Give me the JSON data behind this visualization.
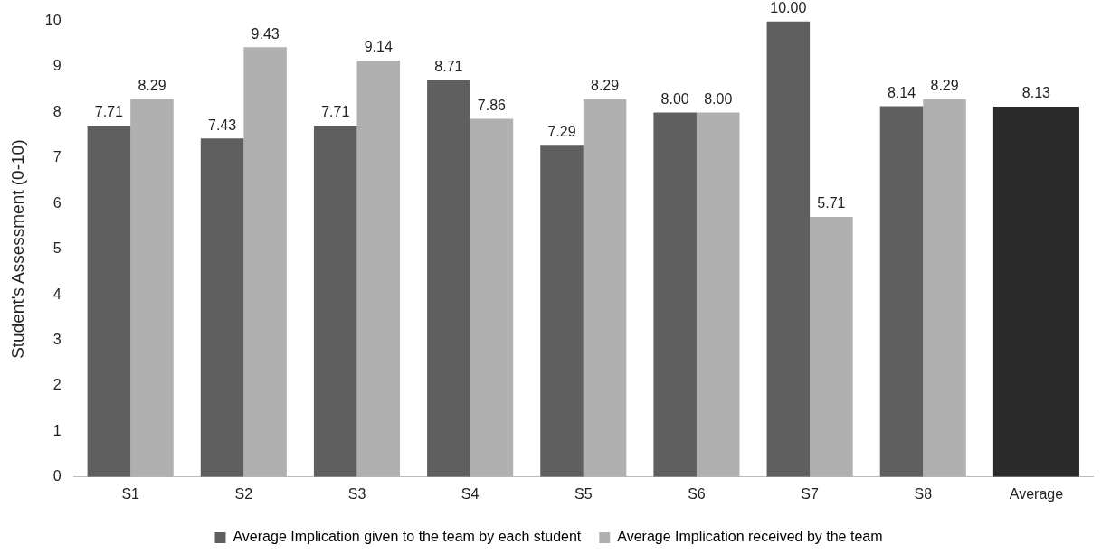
{
  "chart_data": {
    "type": "bar",
    "ylabel": "Student's Assessment (0-10)",
    "categories": [
      "S1",
      "S2",
      "S3",
      "S4",
      "S5",
      "S6",
      "S7",
      "S8",
      "Average"
    ],
    "series": [
      {
        "name": "Average Implication given to the team by each student",
        "color": "#5f5f5f",
        "colors": [
          "#5f5f5f",
          "#5f5f5f",
          "#5f5f5f",
          "#5f5f5f",
          "#5f5f5f",
          "#5f5f5f",
          "#5f5f5f",
          "#5f5f5f",
          "#2b2b2b"
        ],
        "values": [
          7.71,
          7.43,
          7.71,
          8.71,
          7.29,
          8.0,
          10.0,
          8.14,
          8.13
        ],
        "value_labels": [
          "7.71",
          "7.43",
          "7.71",
          "8.71",
          "7.29",
          "8.00",
          "10.00",
          "8.14",
          "8.13"
        ]
      },
      {
        "name": "Average Implication received by the team",
        "color": "#b0b0b0",
        "values": [
          8.29,
          9.43,
          9.14,
          7.86,
          8.29,
          8.0,
          5.71,
          8.29,
          null
        ],
        "value_labels": [
          "8.29",
          "9.43",
          "9.14",
          "7.86",
          "8.29",
          "8.00",
          "5.71",
          "8.29",
          null
        ]
      }
    ],
    "ylim": [
      0,
      10
    ],
    "yticks": [
      0,
      1,
      2,
      3,
      4,
      5,
      6,
      7,
      8,
      9,
      10
    ],
    "grid": false,
    "legend": "bottom"
  }
}
